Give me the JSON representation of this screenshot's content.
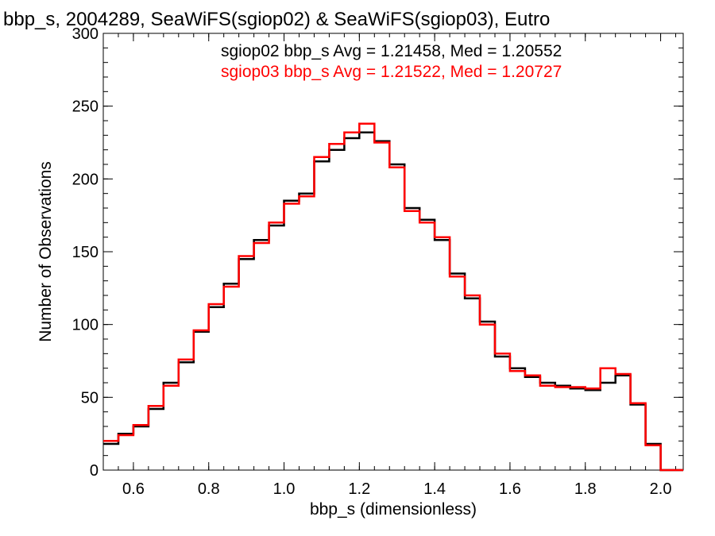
{
  "chart_data": {
    "type": "line",
    "title": "bbp_s, 2004289, SeaWiFS(sgiop02) & SeaWiFS(sgiop03), Eutro",
    "xlabel": "bbp_s (dimensionless)",
    "ylabel": "Number of Observations",
    "xlim": [
      0.52,
      2.06
    ],
    "ylim": [
      0,
      300
    ],
    "x_ticks": [
      0.6,
      0.8,
      1.0,
      1.2,
      1.4,
      1.6,
      1.8,
      2.0
    ],
    "x_tick_labels": [
      "0.6",
      "0.8",
      "1.0",
      "1.2",
      "1.4",
      "1.6",
      "1.8",
      "2.0"
    ],
    "y_ticks": [
      0,
      50,
      100,
      150,
      200,
      250,
      300
    ],
    "y_tick_labels": [
      "0",
      "50",
      "100",
      "150",
      "200",
      "250",
      "300"
    ],
    "grid": false,
    "legend_position": "top-right",
    "legend": [
      "sgiop02 bbp_s Avg = 1.21458, Med = 1.20552",
      "sgiop03 bbp_s Avg = 1.21522, Med = 1.20727"
    ],
    "series": [
      {
        "name": "sgiop02",
        "color": "#000000",
        "bin_width": 0.04,
        "x": [
          0.52,
          0.56,
          0.6,
          0.64,
          0.68,
          0.72,
          0.76,
          0.8,
          0.84,
          0.88,
          0.92,
          0.96,
          1.0,
          1.04,
          1.08,
          1.12,
          1.16,
          1.2,
          1.24,
          1.28,
          1.32,
          1.36,
          1.4,
          1.44,
          1.48,
          1.52,
          1.56,
          1.6,
          1.64,
          1.68,
          1.72,
          1.76,
          1.8,
          1.84,
          1.88,
          1.92,
          1.96,
          2.0,
          2.04
        ],
        "values": [
          18,
          25,
          30,
          42,
          60,
          74,
          95,
          112,
          128,
          145,
          158,
          168,
          185,
          190,
          212,
          220,
          228,
          232,
          226,
          210,
          180,
          172,
          158,
          135,
          118,
          102,
          78,
          70,
          64,
          60,
          58,
          56,
          55,
          60,
          65,
          45,
          18,
          0,
          0
        ]
      },
      {
        "name": "sgiop03",
        "color": "#ff0000",
        "bin_width": 0.04,
        "x": [
          0.52,
          0.56,
          0.6,
          0.64,
          0.68,
          0.72,
          0.76,
          0.8,
          0.84,
          0.88,
          0.92,
          0.96,
          1.0,
          1.04,
          1.08,
          1.12,
          1.16,
          1.2,
          1.24,
          1.28,
          1.32,
          1.36,
          1.4,
          1.44,
          1.48,
          1.52,
          1.56,
          1.6,
          1.64,
          1.68,
          1.72,
          1.76,
          1.8,
          1.84,
          1.88,
          1.92,
          1.96,
          2.0,
          2.04
        ],
        "values": [
          20,
          24,
          31,
          44,
          58,
          76,
          96,
          114,
          126,
          147,
          156,
          170,
          183,
          188,
          215,
          224,
          232,
          238,
          225,
          208,
          178,
          170,
          160,
          133,
          120,
          100,
          80,
          68,
          65,
          58,
          57,
          57,
          56,
          70,
          66,
          46,
          17,
          0,
          0
        ]
      }
    ]
  }
}
